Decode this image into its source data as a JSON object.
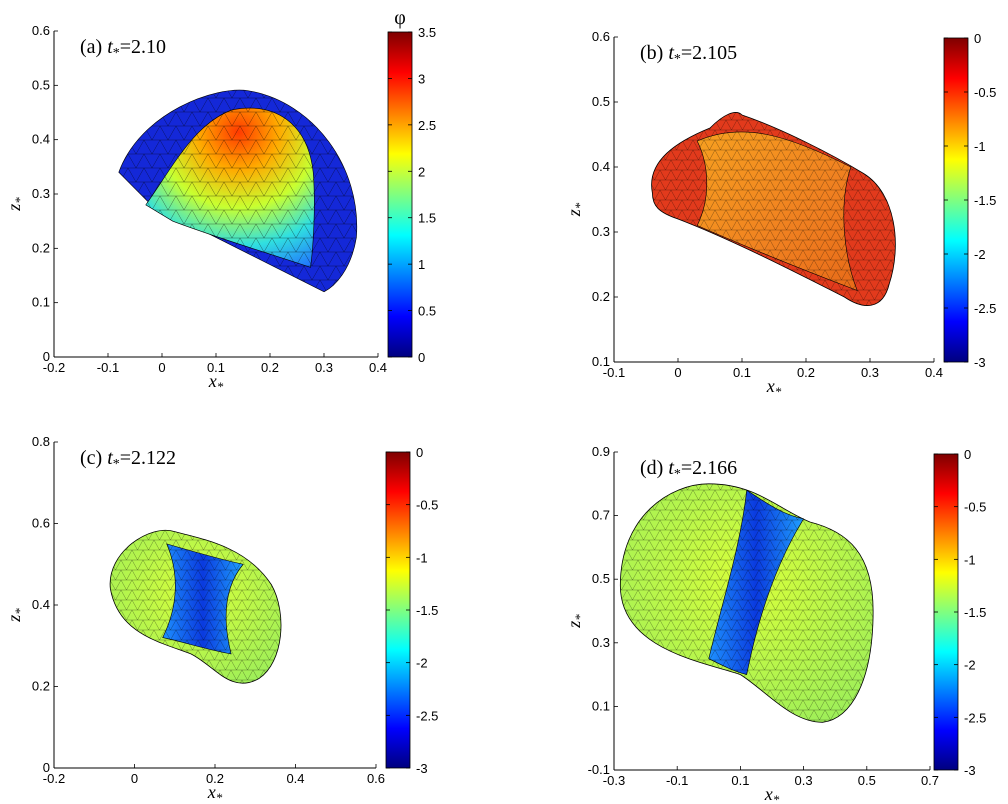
{
  "chart_data": [
    {
      "type": "surface-3d",
      "panel_label": "(a)",
      "time_label": "t",
      "time_value": "2.10",
      "xlabel": "x",
      "ylabel": "z",
      "xlim": [
        -0.2,
        0.4
      ],
      "ylim": [
        0,
        0.6
      ],
      "xticks": [
        "-0.2",
        "-0.1",
        "0",
        "0.1",
        "0.2",
        "0.3",
        "0.4"
      ],
      "yticks": [
        "0",
        "0.1",
        "0.2",
        "0.3",
        "0.4",
        "0.5",
        "0.6"
      ],
      "colorbar": {
        "title": "φ",
        "min": 0,
        "max": 3.5,
        "ticks": [
          "0",
          "0.5",
          "1",
          "1.5",
          "2",
          "2.5",
          "3",
          "3.5"
        ]
      }
    },
    {
      "type": "surface-3d",
      "panel_label": "(b)",
      "time_label": "t",
      "time_value": "2.105",
      "xlabel": "x",
      "ylabel": "z",
      "xlim": [
        -0.1,
        0.4
      ],
      "ylim": [
        0.1,
        0.6
      ],
      "xticks": [
        "-0.1",
        "0",
        "0.1",
        "0.2",
        "0.3",
        "0.4"
      ],
      "yticks": [
        "0.1",
        "0.2",
        "0.3",
        "0.4",
        "0.5",
        "0.6"
      ],
      "colorbar": {
        "title": "",
        "min": -3,
        "max": 0,
        "ticks": [
          "-3",
          "-2.5",
          "-2",
          "-1.5",
          "-1",
          "-0.5",
          "0"
        ]
      }
    },
    {
      "type": "surface-3d",
      "panel_label": "(c)",
      "time_label": "t",
      "time_value": "2.122",
      "xlabel": "x",
      "ylabel": "z",
      "xlim": [
        -0.2,
        0.6
      ],
      "ylim": [
        0,
        0.8
      ],
      "xticks": [
        "-0.2",
        "0",
        "0.2",
        "0.4",
        "0.6"
      ],
      "yticks": [
        "0",
        "0.2",
        "0.4",
        "0.6",
        "0.8"
      ],
      "colorbar": {
        "title": "",
        "min": -3,
        "max": 0,
        "ticks": [
          "-3",
          "-2.5",
          "-2",
          "-1.5",
          "-1",
          "-0.5",
          "0"
        ]
      }
    },
    {
      "type": "surface-3d",
      "panel_label": "(d)",
      "time_label": "t",
      "time_value": "2.166",
      "xlabel": "x",
      "ylabel": "z",
      "xlim": [
        -0.3,
        0.7
      ],
      "ylim": [
        -0.1,
        0.9
      ],
      "xticks": [
        "-0.3",
        "-0.1",
        "0.1",
        "0.3",
        "0.5",
        "0.7"
      ],
      "yticks": [
        "-0.1",
        "0.1",
        "0.3",
        "0.5",
        "0.7",
        "0.9"
      ],
      "colorbar": {
        "title": "",
        "min": -3,
        "max": 0,
        "ticks": [
          "-3",
          "-2.5",
          "-2",
          "-1.5",
          "-1",
          "-0.5",
          "0"
        ]
      }
    }
  ]
}
